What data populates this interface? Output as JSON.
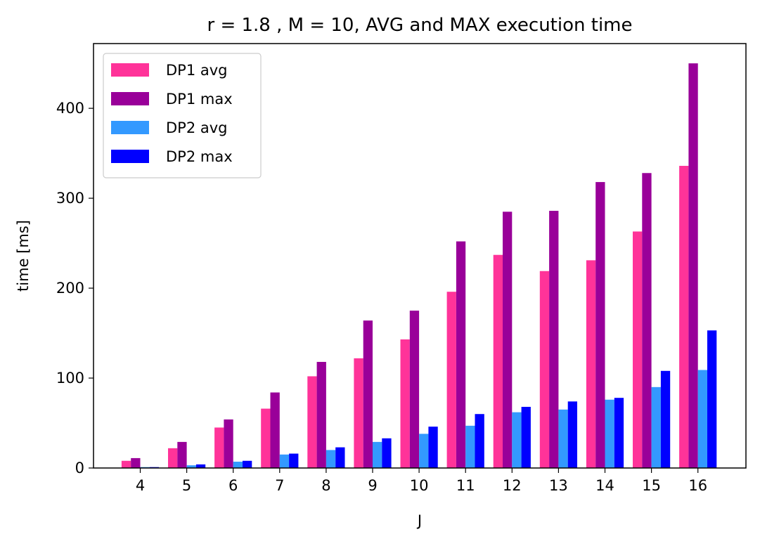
{
  "chart_data": {
    "type": "bar",
    "title": "r = 1.8 , M = 10, AVG and MAX execution time",
    "xlabel": "J",
    "ylabel": "time [ms]",
    "categories": [
      "4",
      "5",
      "6",
      "7",
      "8",
      "9",
      "10",
      "11",
      "12",
      "13",
      "14",
      "15",
      "16"
    ],
    "ylim": [
      0,
      472
    ],
    "yticks": [
      0,
      100,
      200,
      300,
      400
    ],
    "grid": false,
    "legend_position": "upper-left",
    "series": [
      {
        "name": "DP1 avg",
        "color": "#ff3399",
        "values": [
          8,
          22,
          45,
          66,
          102,
          122,
          143,
          196,
          237,
          219,
          231,
          263,
          336
        ]
      },
      {
        "name": "DP1 max",
        "color": "#990099",
        "values": [
          11,
          29,
          54,
          84,
          118,
          164,
          175,
          252,
          285,
          286,
          318,
          328,
          450
        ]
      },
      {
        "name": "DP2 avg",
        "color": "#3399ff",
        "values": [
          1,
          3,
          7,
          15,
          20,
          29,
          38,
          47,
          62,
          65,
          76,
          90,
          109
        ]
      },
      {
        "name": "DP2 max",
        "color": "#0000ff",
        "values": [
          1,
          4,
          8,
          16,
          23,
          33,
          46,
          60,
          68,
          74,
          78,
          108,
          153
        ]
      }
    ]
  }
}
